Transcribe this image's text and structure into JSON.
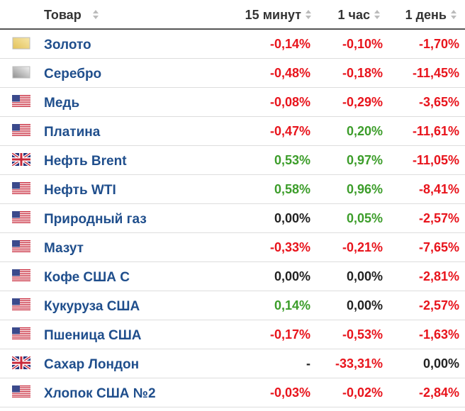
{
  "table": {
    "header": [
      "Товар",
      "15 минут",
      "1 час",
      "1 день"
    ],
    "rows": [
      [
        "Золото",
        "-0,14%",
        "-0,10%",
        "-1,70%"
      ],
      [
        "Серебро",
        "-0,48%",
        "-0,18%",
        "-11,45%"
      ],
      [
        "Медь",
        "-0,08%",
        "-0,29%",
        "-3,65%"
      ],
      [
        "Платина",
        "-0,47%",
        "0,20%",
        "-11,61%"
      ],
      [
        "Нефть Brent",
        "0,53%",
        "0,97%",
        "-11,05%"
      ],
      [
        "Нефть WTI",
        "0,58%",
        "0,96%",
        "-8,41%"
      ],
      [
        "Природный газ",
        "0,00%",
        "0,05%",
        "-2,57%"
      ],
      [
        "Мазут",
        "-0,33%",
        "-0,21%",
        "-7,65%"
      ],
      [
        "Кофе США С",
        "0,00%",
        "0,00%",
        "-2,81%"
      ],
      [
        "Кукуруза США",
        "0,14%",
        "0,00%",
        "-2,57%"
      ],
      [
        "Пшеница США",
        "-0,17%",
        "-0,53%",
        "-1,63%"
      ],
      [
        "Сахар Лондон",
        "-",
        "-33,31%",
        "0,00%"
      ],
      [
        "Хлопок США №2",
        "-0,03%",
        "-0,02%",
        "-2,84%"
      ]
    ]
  }
}
